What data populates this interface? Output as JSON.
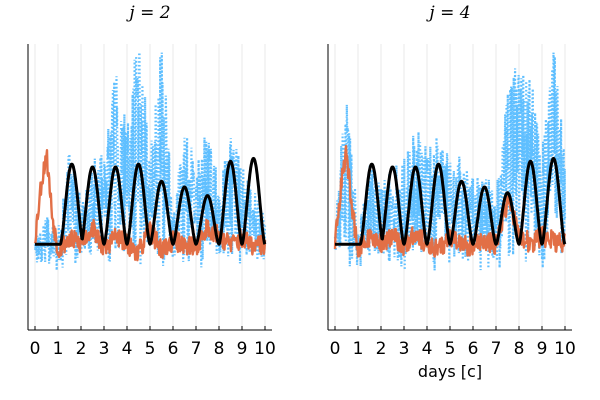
{
  "chart_data": [
    {
      "type": "line",
      "title": "j = 2",
      "xlabel": "",
      "ylabel": "",
      "xlim": [
        0,
        10
      ],
      "xticks": [
        "0",
        "1",
        "2",
        "3",
        "4",
        "5",
        "6",
        "7",
        "8",
        "9",
        "10"
      ],
      "grid": "vertical",
      "legend": "none",
      "series": [
        {
          "color": "#5fbfff",
          "style": "dotted",
          "x": [
            0,
            0.5,
            1,
            1.5,
            2,
            2.5,
            3,
            3.5,
            4,
            4.5,
            5,
            5.5,
            6,
            6.5,
            7,
            7.5,
            8,
            8.5,
            9,
            9.5,
            10
          ],
          "values": [
            0.25,
            0.32,
            0.22,
            0.5,
            0.35,
            0.45,
            0.48,
            0.75,
            0.55,
            0.85,
            0.5,
            0.8,
            0.35,
            0.55,
            0.45,
            0.55,
            0.4,
            0.55,
            0.45,
            0.4,
            0.3
          ]
        },
        {
          "color": "#e26f46",
          "style": "solid",
          "x": [
            0,
            0.25,
            0.5,
            0.75,
            1,
            1.5,
            2,
            2.5,
            3,
            3.5,
            4,
            4.5,
            5,
            5.5,
            6,
            6.5,
            7,
            7.5,
            8,
            8.5,
            9,
            9.5,
            10
          ],
          "values": [
            0.32,
            0.5,
            0.62,
            0.4,
            0.28,
            0.32,
            0.3,
            0.36,
            0.28,
            0.33,
            0.3,
            0.27,
            0.35,
            0.28,
            0.31,
            0.3,
            0.29,
            0.36,
            0.33,
            0.3,
            0.32,
            0.29,
            0.3
          ]
        },
        {
          "color": "#000000",
          "style": "solid",
          "peaks_x": [
            1.6,
            2.5,
            3.5,
            4.5,
            5.5,
            6.5,
            7.5,
            8.5,
            9.5
          ],
          "peaks_y": [
            0.58,
            0.57,
            0.57,
            0.58,
            0.52,
            0.5,
            0.47,
            0.59,
            0.6
          ],
          "baseline": 0.3
        }
      ]
    },
    {
      "type": "line",
      "title": "j = 4",
      "xlabel": "days [c]",
      "ylabel": "",
      "xlim": [
        0,
        10
      ],
      "xticks": [
        "0",
        "1",
        "2",
        "3",
        "4",
        "5",
        "6",
        "7",
        "8",
        "9",
        "10"
      ],
      "grid": "vertical",
      "legend": "none",
      "series": [
        {
          "color": "#5fbfff",
          "style": "dotted",
          "x": [
            0,
            0.5,
            1,
            1.5,
            2,
            2.5,
            3,
            3.5,
            4,
            4.5,
            5,
            5.5,
            6,
            6.5,
            7,
            7.5,
            8,
            8.5,
            9,
            9.5,
            10
          ],
          "values": [
            0.3,
            0.65,
            0.28,
            0.45,
            0.4,
            0.42,
            0.5,
            0.55,
            0.5,
            0.55,
            0.48,
            0.5,
            0.45,
            0.42,
            0.4,
            0.7,
            0.75,
            0.72,
            0.5,
            0.85,
            0.45
          ]
        },
        {
          "color": "#e26f46",
          "style": "solid",
          "x": [
            0,
            0.25,
            0.5,
            0.75,
            1,
            1.5,
            2,
            2.5,
            3,
            3.5,
            4,
            4.5,
            5,
            5.5,
            6,
            6.5,
            7,
            7.5,
            8,
            8.5,
            9,
            9.5,
            10
          ],
          "values": [
            0.3,
            0.5,
            0.62,
            0.42,
            0.28,
            0.32,
            0.3,
            0.33,
            0.29,
            0.34,
            0.3,
            0.28,
            0.33,
            0.3,
            0.29,
            0.31,
            0.3,
            0.45,
            0.34,
            0.3,
            0.33,
            0.31,
            0.3
          ]
        },
        {
          "color": "#000000",
          "style": "solid",
          "peaks_x": [
            1.6,
            2.5,
            3.5,
            4.5,
            5.5,
            6.5,
            7.5,
            8.5,
            9.5
          ],
          "peaks_y": [
            0.58,
            0.57,
            0.57,
            0.58,
            0.52,
            0.5,
            0.48,
            0.59,
            0.6
          ],
          "baseline": 0.3
        }
      ]
    }
  ]
}
